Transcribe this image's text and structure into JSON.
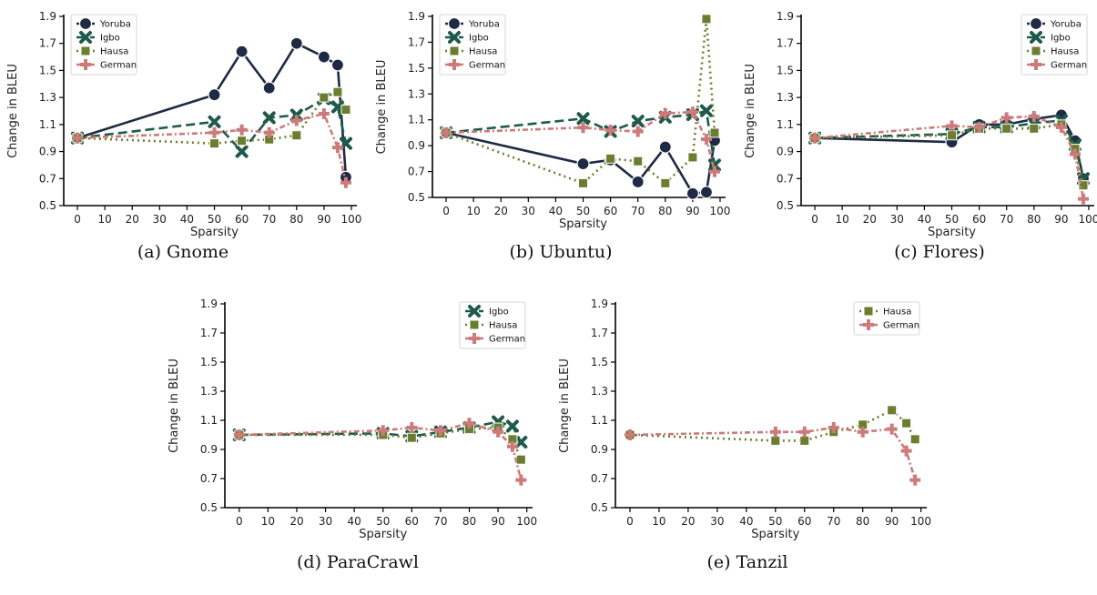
{
  "colors": {
    "Yoruba": "#1f2a44",
    "Igbo": "#1e5a4a",
    "Hausa": "#6b7d2e",
    "German": "#cc7a7a"
  },
  "series_styles": {
    "Yoruba": {
      "dash": "",
      "marker": "circle"
    },
    "Igbo": {
      "dash": "10 5",
      "marker": "x"
    },
    "Hausa": {
      "dash": "2 4",
      "marker": "square"
    },
    "German": {
      "dash": "6 3 2 3",
      "marker": "plus"
    }
  },
  "chart_data": [
    {
      "type": "line",
      "caption": "(a) Gnome",
      "xlabel": "Sparsity",
      "ylabel": "Change in BLEU",
      "xlim": [
        -5,
        102
      ],
      "ylim": [
        0.5,
        1.9
      ],
      "xticks": [
        0,
        10,
        20,
        30,
        40,
        50,
        60,
        70,
        80,
        90,
        100
      ],
      "yticks": [
        0.5,
        0.7,
        0.9,
        1.1,
        1.3,
        1.5,
        1.7,
        1.9
      ],
      "legend_position": "top-left",
      "series": [
        {
          "name": "Yoruba",
          "x": [
            0,
            50,
            60,
            70,
            80,
            90,
            95,
            98
          ],
          "values": [
            1.0,
            1.32,
            1.64,
            1.37,
            1.7,
            1.6,
            1.54,
            0.71
          ]
        },
        {
          "name": "Igbo",
          "x": [
            0,
            50,
            60,
            70,
            80,
            90,
            95,
            98
          ],
          "values": [
            1.0,
            1.12,
            0.9,
            1.15,
            1.17,
            1.29,
            1.23,
            0.96
          ]
        },
        {
          "name": "Hausa",
          "x": [
            0,
            50,
            60,
            70,
            80,
            90,
            95,
            98
          ],
          "values": [
            1.0,
            0.96,
            0.98,
            0.99,
            1.02,
            1.3,
            1.34,
            1.21
          ]
        },
        {
          "name": "German",
          "x": [
            0,
            50,
            60,
            70,
            80,
            90,
            95,
            98
          ],
          "values": [
            1.0,
            1.04,
            1.06,
            1.04,
            1.13,
            1.18,
            0.93,
            0.67
          ]
        }
      ]
    },
    {
      "type": "line",
      "caption": "(b) Ubuntu)",
      "xlabel": "Sparsity",
      "ylabel": "Change in BLEU",
      "xlim": [
        -5,
        102
      ],
      "ylim": [
        0.5,
        1.9
      ],
      "xticks": [
        0,
        10,
        20,
        30,
        40,
        50,
        60,
        70,
        80,
        90,
        100
      ],
      "yticks": [
        0.5,
        0.7,
        0.9,
        1.1,
        1.3,
        1.5,
        1.7,
        1.9
      ],
      "legend_position": "top-left",
      "series": [
        {
          "name": "Yoruba",
          "x": [
            0,
            50,
            60,
            70,
            80,
            90,
            95,
            98
          ],
          "values": [
            1.0,
            0.76,
            0.79,
            0.62,
            0.89,
            0.53,
            0.54,
            0.94
          ]
        },
        {
          "name": "Igbo",
          "x": [
            0,
            50,
            60,
            70,
            80,
            90,
            95,
            98
          ],
          "values": [
            1.0,
            1.11,
            1.01,
            1.09,
            1.12,
            1.14,
            1.17,
            0.75
          ]
        },
        {
          "name": "Hausa",
          "x": [
            0,
            50,
            60,
            70,
            80,
            90,
            95,
            98
          ],
          "values": [
            1.0,
            0.61,
            0.8,
            0.78,
            0.61,
            0.81,
            1.88,
            1.0
          ]
        },
        {
          "name": "German",
          "x": [
            0,
            50,
            60,
            70,
            80,
            90,
            95,
            98
          ],
          "values": [
            1.0,
            1.04,
            1.02,
            1.01,
            1.15,
            1.16,
            0.95,
            0.7
          ]
        }
      ]
    },
    {
      "type": "line",
      "caption": "(c) Flores)",
      "xlabel": "Sparsity",
      "ylabel": "Change in BLEU",
      "xlim": [
        -5,
        102
      ],
      "ylim": [
        0.5,
        1.9
      ],
      "xticks": [
        0,
        10,
        20,
        30,
        40,
        50,
        60,
        70,
        80,
        90,
        100
      ],
      "yticks": [
        0.5,
        0.7,
        0.9,
        1.1,
        1.3,
        1.5,
        1.7,
        1.9
      ],
      "legend_position": "top-right",
      "series": [
        {
          "name": "Yoruba",
          "x": [
            0,
            50,
            60,
            70,
            80,
            90,
            95,
            98
          ],
          "values": [
            1.0,
            0.97,
            1.1,
            1.1,
            1.14,
            1.17,
            0.98,
            0.7
          ]
        },
        {
          "name": "Igbo",
          "x": [
            0,
            50,
            60,
            70,
            80,
            90,
            95,
            98
          ],
          "values": [
            1.0,
            1.03,
            1.08,
            1.08,
            1.11,
            1.13,
            0.95,
            0.7
          ]
        },
        {
          "name": "Hausa",
          "x": [
            0,
            50,
            60,
            70,
            80,
            90,
            95,
            98
          ],
          "values": [
            1.0,
            1.02,
            1.07,
            1.07,
            1.07,
            1.1,
            0.92,
            0.65
          ]
        },
        {
          "name": "German",
          "x": [
            0,
            50,
            60,
            70,
            80,
            90,
            95,
            98
          ],
          "values": [
            1.0,
            1.09,
            1.08,
            1.15,
            1.16,
            1.08,
            0.88,
            0.55
          ]
        }
      ]
    },
    {
      "type": "line",
      "caption": "(d) ParaCrawl",
      "xlabel": "Sparsity",
      "ylabel": "Change in BLEU",
      "xlim": [
        -5,
        102
      ],
      "ylim": [
        0.5,
        1.9
      ],
      "xticks": [
        0,
        10,
        20,
        30,
        40,
        50,
        60,
        70,
        80,
        90,
        100
      ],
      "yticks": [
        0.5,
        0.7,
        0.9,
        1.1,
        1.3,
        1.5,
        1.7,
        1.9
      ],
      "legend_position": "top-right",
      "series": [
        {
          "name": "Igbo",
          "x": [
            0,
            50,
            60,
            70,
            80,
            90,
            95,
            98
          ],
          "values": [
            1.0,
            1.01,
            0.99,
            1.02,
            1.05,
            1.09,
            1.06,
            0.95
          ]
        },
        {
          "name": "Hausa",
          "x": [
            0,
            50,
            60,
            70,
            80,
            90,
            95,
            98
          ],
          "values": [
            1.0,
            1.0,
            0.98,
            1.01,
            1.04,
            1.05,
            0.97,
            0.83
          ]
        },
        {
          "name": "German",
          "x": [
            0,
            50,
            60,
            70,
            80,
            90,
            95,
            98
          ],
          "values": [
            1.0,
            1.03,
            1.05,
            1.03,
            1.08,
            1.02,
            0.92,
            0.69
          ]
        }
      ]
    },
    {
      "type": "line",
      "caption": "(e) Tanzil",
      "xlabel": "Sparsity",
      "ylabel": "Change in BLEU",
      "xlim": [
        -5,
        102
      ],
      "ylim": [
        0.5,
        1.9
      ],
      "xticks": [
        0,
        10,
        20,
        30,
        40,
        50,
        60,
        70,
        80,
        90,
        100
      ],
      "yticks": [
        0.5,
        0.7,
        0.9,
        1.1,
        1.3,
        1.5,
        1.7,
        1.9
      ],
      "legend_position": "top-right",
      "series": [
        {
          "name": "Hausa",
          "x": [
            0,
            50,
            60,
            70,
            80,
            90,
            95,
            98
          ],
          "values": [
            1.0,
            0.96,
            0.96,
            1.02,
            1.07,
            1.17,
            1.08,
            0.97
          ]
        },
        {
          "name": "German",
          "x": [
            0,
            50,
            60,
            70,
            80,
            90,
            95,
            98
          ],
          "values": [
            1.0,
            1.02,
            1.02,
            1.05,
            1.02,
            1.04,
            0.89,
            0.69
          ]
        }
      ]
    }
  ]
}
